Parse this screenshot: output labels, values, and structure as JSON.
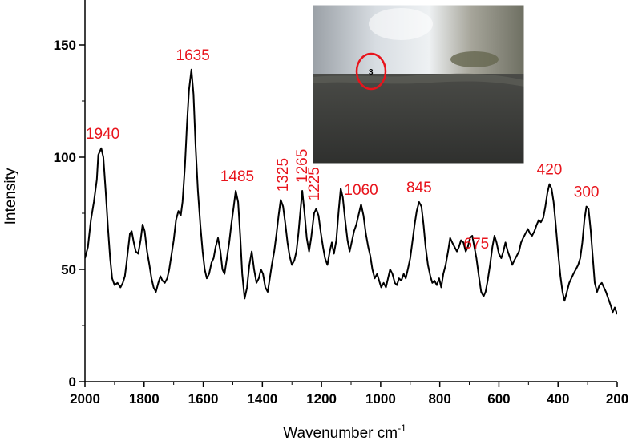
{
  "chart_data": {
    "type": "line",
    "title": "",
    "xlabel": "Wavenumber cm",
    "xlabel_superscript": "-1",
    "ylabel": "Intensity",
    "xlim": [
      2000,
      200
    ],
    "ylim": [
      0,
      170
    ],
    "x_ticks": [
      2000,
      1800,
      1600,
      1400,
      1200,
      1000,
      800,
      600,
      400,
      200
    ],
    "x_tick_labels": [
      "2000",
      "1800",
      "1600",
      "1400",
      "1200",
      "1000",
      "800",
      "600",
      "400",
      "200"
    ],
    "y_ticks": [
      0,
      50,
      100,
      150
    ],
    "y_tick_labels": [
      "0",
      "50",
      "100",
      "150"
    ],
    "grid": false,
    "series": [
      {
        "points": [
          [
            2000,
            55
          ],
          [
            1990,
            60
          ],
          [
            1980,
            72
          ],
          [
            1970,
            80
          ],
          [
            1960,
            90
          ],
          [
            1955,
            101
          ],
          [
            1945,
            104
          ],
          [
            1938,
            100
          ],
          [
            1930,
            85
          ],
          [
            1922,
            68
          ],
          [
            1915,
            55
          ],
          [
            1908,
            46
          ],
          [
            1900,
            43
          ],
          [
            1890,
            44
          ],
          [
            1880,
            42
          ],
          [
            1872,
            44
          ],
          [
            1865,
            47
          ],
          [
            1860,
            52
          ],
          [
            1855,
            58
          ],
          [
            1848,
            66
          ],
          [
            1842,
            67
          ],
          [
            1835,
            62
          ],
          [
            1828,
            58
          ],
          [
            1820,
            57
          ],
          [
            1812,
            63
          ],
          [
            1805,
            70
          ],
          [
            1798,
            67
          ],
          [
            1790,
            58
          ],
          [
            1782,
            52
          ],
          [
            1775,
            46
          ],
          [
            1768,
            42
          ],
          [
            1760,
            40
          ],
          [
            1752,
            44
          ],
          [
            1745,
            47
          ],
          [
            1738,
            45
          ],
          [
            1730,
            44
          ],
          [
            1722,
            46
          ],
          [
            1715,
            50
          ],
          [
            1708,
            56
          ],
          [
            1700,
            63
          ],
          [
            1692,
            72
          ],
          [
            1684,
            76
          ],
          [
            1676,
            74
          ],
          [
            1670,
            80
          ],
          [
            1662,
            96
          ],
          [
            1655,
            115
          ],
          [
            1648,
            130
          ],
          [
            1640,
            139
          ],
          [
            1633,
            128
          ],
          [
            1626,
            105
          ],
          [
            1618,
            85
          ],
          [
            1610,
            70
          ],
          [
            1602,
            58
          ],
          [
            1595,
            50
          ],
          [
            1588,
            46
          ],
          [
            1580,
            48
          ],
          [
            1572,
            53
          ],
          [
            1565,
            55
          ],
          [
            1558,
            60
          ],
          [
            1550,
            64
          ],
          [
            1542,
            58
          ],
          [
            1535,
            50
          ],
          [
            1528,
            48
          ],
          [
            1520,
            55
          ],
          [
            1512,
            62
          ],
          [
            1505,
            70
          ],
          [
            1497,
            78
          ],
          [
            1490,
            85
          ],
          [
            1482,
            80
          ],
          [
            1475,
            65
          ],
          [
            1468,
            48
          ],
          [
            1460,
            37
          ],
          [
            1452,
            42
          ],
          [
            1444,
            52
          ],
          [
            1436,
            58
          ],
          [
            1428,
            50
          ],
          [
            1420,
            44
          ],
          [
            1412,
            46
          ],
          [
            1405,
            50
          ],
          [
            1398,
            48
          ],
          [
            1390,
            42
          ],
          [
            1382,
            40
          ],
          [
            1375,
            46
          ],
          [
            1368,
            52
          ],
          [
            1360,
            58
          ],
          [
            1352,
            66
          ],
          [
            1345,
            74
          ],
          [
            1338,
            81
          ],
          [
            1330,
            78
          ],
          [
            1322,
            70
          ],
          [
            1315,
            62
          ],
          [
            1308,
            56
          ],
          [
            1300,
            52
          ],
          [
            1292,
            54
          ],
          [
            1285,
            58
          ],
          [
            1278,
            66
          ],
          [
            1270,
            78
          ],
          [
            1265,
            85
          ],
          [
            1258,
            76
          ],
          [
            1250,
            64
          ],
          [
            1242,
            58
          ],
          [
            1235,
            64
          ],
          [
            1225,
            75
          ],
          [
            1218,
            77
          ],
          [
            1210,
            74
          ],
          [
            1202,
            66
          ],
          [
            1195,
            60
          ],
          [
            1188,
            55
          ],
          [
            1180,
            52
          ],
          [
            1172,
            58
          ],
          [
            1165,
            62
          ],
          [
            1158,
            57
          ],
          [
            1150,
            63
          ],
          [
            1142,
            76
          ],
          [
            1135,
            86
          ],
          [
            1128,
            82
          ],
          [
            1120,
            72
          ],
          [
            1112,
            63
          ],
          [
            1105,
            58
          ],
          [
            1098,
            62
          ],
          [
            1090,
            67
          ],
          [
            1082,
            70
          ],
          [
            1075,
            74
          ],
          [
            1066,
            79
          ],
          [
            1058,
            74
          ],
          [
            1050,
            66
          ],
          [
            1042,
            60
          ],
          [
            1035,
            56
          ],
          [
            1028,
            50
          ],
          [
            1020,
            46
          ],
          [
            1012,
            48
          ],
          [
            1005,
            45
          ],
          [
            998,
            42
          ],
          [
            990,
            44
          ],
          [
            982,
            42
          ],
          [
            975,
            46
          ],
          [
            968,
            50
          ],
          [
            960,
            48
          ],
          [
            952,
            44
          ],
          [
            945,
            43
          ],
          [
            938,
            46
          ],
          [
            930,
            45
          ],
          [
            922,
            48
          ],
          [
            915,
            46
          ],
          [
            908,
            50
          ],
          [
            900,
            55
          ],
          [
            893,
            62
          ],
          [
            885,
            70
          ],
          [
            878,
            76
          ],
          [
            870,
            80
          ],
          [
            862,
            78
          ],
          [
            855,
            70
          ],
          [
            848,
            60
          ],
          [
            840,
            52
          ],
          [
            832,
            47
          ],
          [
            825,
            44
          ],
          [
            818,
            45
          ],
          [
            810,
            43
          ],
          [
            802,
            46
          ],
          [
            795,
            42
          ],
          [
            788,
            48
          ],
          [
            780,
            52
          ],
          [
            772,
            58
          ],
          [
            765,
            64
          ],
          [
            758,
            62
          ],
          [
            750,
            60
          ],
          [
            742,
            58
          ],
          [
            735,
            60
          ],
          [
            728,
            63
          ],
          [
            720,
            62
          ],
          [
            712,
            58
          ],
          [
            705,
            60
          ],
          [
            698,
            64
          ],
          [
            690,
            65
          ],
          [
            683,
            60
          ],
          [
            676,
            55
          ],
          [
            668,
            47
          ],
          [
            660,
            40
          ],
          [
            652,
            38
          ],
          [
            645,
            40
          ],
          [
            638,
            45
          ],
          [
            630,
            52
          ],
          [
            622,
            60
          ],
          [
            615,
            65
          ],
          [
            608,
            62
          ],
          [
            600,
            57
          ],
          [
            592,
            55
          ],
          [
            585,
            58
          ],
          [
            578,
            62
          ],
          [
            570,
            58
          ],
          [
            562,
            55
          ],
          [
            555,
            52
          ],
          [
            548,
            54
          ],
          [
            540,
            56
          ],
          [
            532,
            58
          ],
          [
            525,
            62
          ],
          [
            518,
            64
          ],
          [
            510,
            66
          ],
          [
            502,
            68
          ],
          [
            495,
            66
          ],
          [
            488,
            65
          ],
          [
            480,
            67
          ],
          [
            472,
            70
          ],
          [
            465,
            72
          ],
          [
            458,
            71
          ],
          [
            450,
            73
          ],
          [
            443,
            78
          ],
          [
            436,
            84
          ],
          [
            429,
            88
          ],
          [
            422,
            86
          ],
          [
            415,
            80
          ],
          [
            408,
            70
          ],
          [
            400,
            58
          ],
          [
            392,
            47
          ],
          [
            385,
            40
          ],
          [
            378,
            36
          ],
          [
            370,
            40
          ],
          [
            362,
            44
          ],
          [
            355,
            46
          ],
          [
            348,
            48
          ],
          [
            340,
            50
          ],
          [
            332,
            52
          ],
          [
            325,
            55
          ],
          [
            318,
            62
          ],
          [
            311,
            72
          ],
          [
            304,
            78
          ],
          [
            297,
            77
          ],
          [
            290,
            68
          ],
          [
            283,
            56
          ],
          [
            276,
            44
          ],
          [
            268,
            40
          ],
          [
            260,
            43
          ],
          [
            252,
            44
          ],
          [
            245,
            42
          ],
          [
            238,
            40
          ],
          [
            230,
            37
          ],
          [
            222,
            34
          ],
          [
            215,
            31
          ],
          [
            208,
            33
          ],
          [
            200,
            30
          ]
        ]
      }
    ],
    "annotations": [
      {
        "text": "1940",
        "x": 1940,
        "y": 104
      },
      {
        "text": "1635",
        "x": 1635,
        "y": 139
      },
      {
        "text": "1485",
        "x": 1485,
        "y": 85
      },
      {
        "text": "1325",
        "x": 1330,
        "y": 81,
        "rotated": true
      },
      {
        "text": "1265",
        "x": 1265,
        "y": 85,
        "rotated": true
      },
      {
        "text": "1225",
        "x": 1225,
        "y": 77,
        "rotated": true
      },
      {
        "text": "1060",
        "x": 1066,
        "y": 79
      },
      {
        "text": "845",
        "x": 870,
        "y": 80
      },
      {
        "text": "675",
        "x": 676,
        "y": 55
      },
      {
        "text": "420",
        "x": 429,
        "y": 88
      },
      {
        "text": "300",
        "x": 304,
        "y": 78
      }
    ]
  },
  "inset": {
    "marker_label": "3",
    "colors": {
      "marker_ring": "#e8141c",
      "marker_text": "#000000"
    }
  },
  "colors": {
    "line": "#000000",
    "annotation": "#e8141c",
    "axis": "#000000"
  }
}
